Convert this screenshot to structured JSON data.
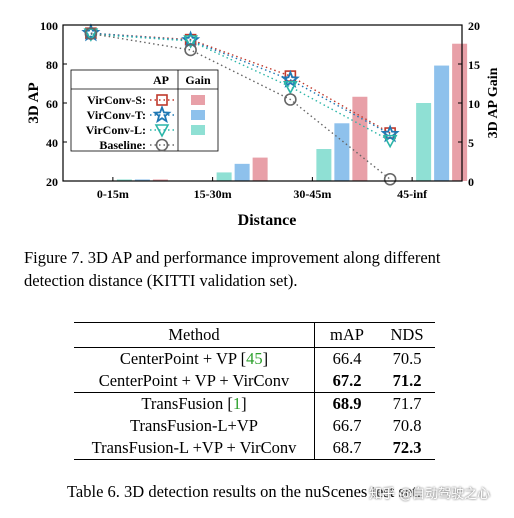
{
  "chart_data": {
    "type": "bar+line",
    "xlabel": "Distance",
    "ylabel_left": "3D AP",
    "ylabel_right": "3D AP Gain",
    "categories": [
      "0-15m",
      "15-30m",
      "30-45m",
      "45-inf"
    ],
    "ylim_left": [
      20,
      100
    ],
    "yticks_left": [
      20,
      40,
      60,
      80,
      100
    ],
    "ylim_right": [
      0,
      20
    ],
    "yticks_right": [
      0,
      5,
      10,
      15,
      20
    ],
    "grid": false,
    "legend_position": "left-middle",
    "legend_headers": [
      "AP",
      "Gain"
    ],
    "gain_bars": [
      {
        "name": "VirConv-S:",
        "color": "#e8a0a8",
        "values": [
          0.2,
          3.0,
          10.8,
          17.6
        ]
      },
      {
        "name": "VirConv-T:",
        "color": "#8ec1ec",
        "values": [
          0.2,
          2.2,
          7.4,
          14.8
        ]
      },
      {
        "name": "VirConv-L:",
        "color": "#8fe0d4",
        "values": [
          0.2,
          1.1,
          4.1,
          10.0
        ]
      }
    ],
    "ap_lines": [
      {
        "name": "VirConv-S:",
        "marker": "square",
        "color": "#c0392b",
        "values": [
          95.8,
          92.5,
          73.8,
          44.6
        ]
      },
      {
        "name": "VirConv-T:",
        "marker": "star",
        "color": "#1f78b4",
        "values": [
          95.8,
          92.1,
          71.9,
          44.0
        ]
      },
      {
        "name": "VirConv-L:",
        "marker": "triangle-down",
        "color": "#2bb5a8",
        "values": [
          95.3,
          91.8,
          68.3,
          40.7
        ]
      },
      {
        "name": "Baseline:",
        "marker": "circle",
        "color": "#666666",
        "values": [
          95.6,
          87.2,
          61.8,
          20.9
        ]
      }
    ]
  },
  "figure_caption": {
    "line1": "Figure 7.  3D AP and performance improvement along different",
    "line2": "detection distance (KITTI validation set)."
  },
  "table": {
    "headers": {
      "method": "Method",
      "map": "mAP",
      "nds": "NDS"
    },
    "rows": [
      {
        "method": "CenterPoint + VP [",
        "ref": "45",
        "method_end": "]",
        "map": "66.4",
        "nds": "70.5"
      },
      {
        "method": "CenterPoint + VP + VirConv",
        "map": "67.2",
        "nds": "71.2"
      },
      {
        "method": "TransFusion [",
        "ref": "1",
        "method_end": "]",
        "map": "68.9",
        "nds": "71.7"
      },
      {
        "method": "TransFusion-L+VP",
        "map": "66.7",
        "nds": "70.8"
      },
      {
        "method": "TransFusion-L +VP + VirConv",
        "map": "68.7",
        "nds": "72.3"
      }
    ],
    "caption": "Table 6. 3D detection results on the nuScenes test set."
  },
  "watermark": "知乎 @自动驾驶之心"
}
